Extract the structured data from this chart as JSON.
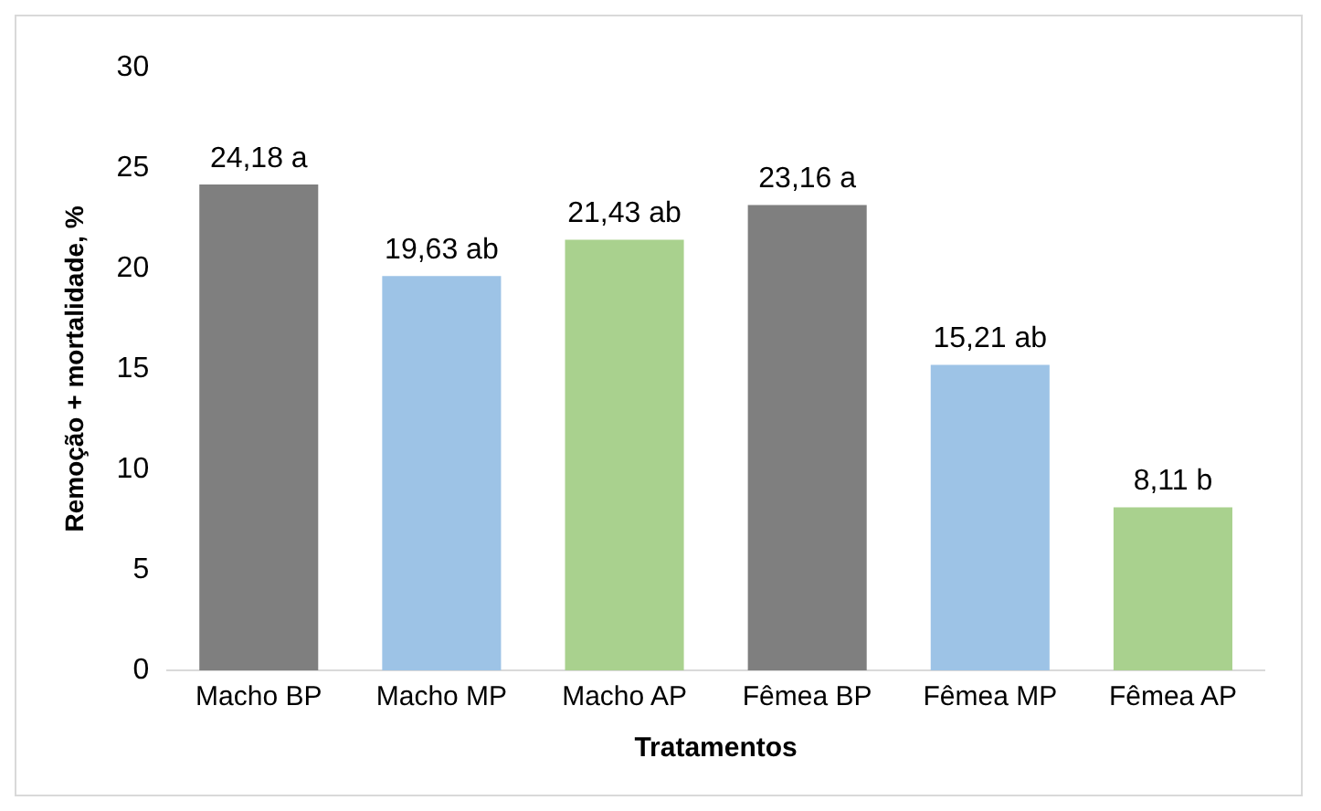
{
  "chart_data": {
    "type": "bar",
    "xlabel": "Tratamentos",
    "ylabel": "Remoção + mortalidade, %",
    "categories": [
      "Macho BP",
      "Macho MP",
      "Macho AP",
      "Fêmea BP",
      "Fêmea MP",
      "Fêmea AP"
    ],
    "values": [
      24.18,
      19.63,
      21.43,
      23.16,
      15.21,
      8.11
    ],
    "colors": [
      "#7f7f7f",
      "#9dc3e6",
      "#a9d18e",
      "#7f7f7f",
      "#9dc3e6",
      "#a9d18e"
    ],
    "value_labels": [
      "24,18 a",
      "19,63 ab",
      "21,43 ab",
      "23,16 a",
      "15,21 ab",
      "8,11 b"
    ],
    "ylim": [
      0,
      30
    ],
    "yticks": [
      0,
      5,
      10,
      15,
      20,
      25,
      30
    ],
    "grid": false,
    "legend": false
  }
}
